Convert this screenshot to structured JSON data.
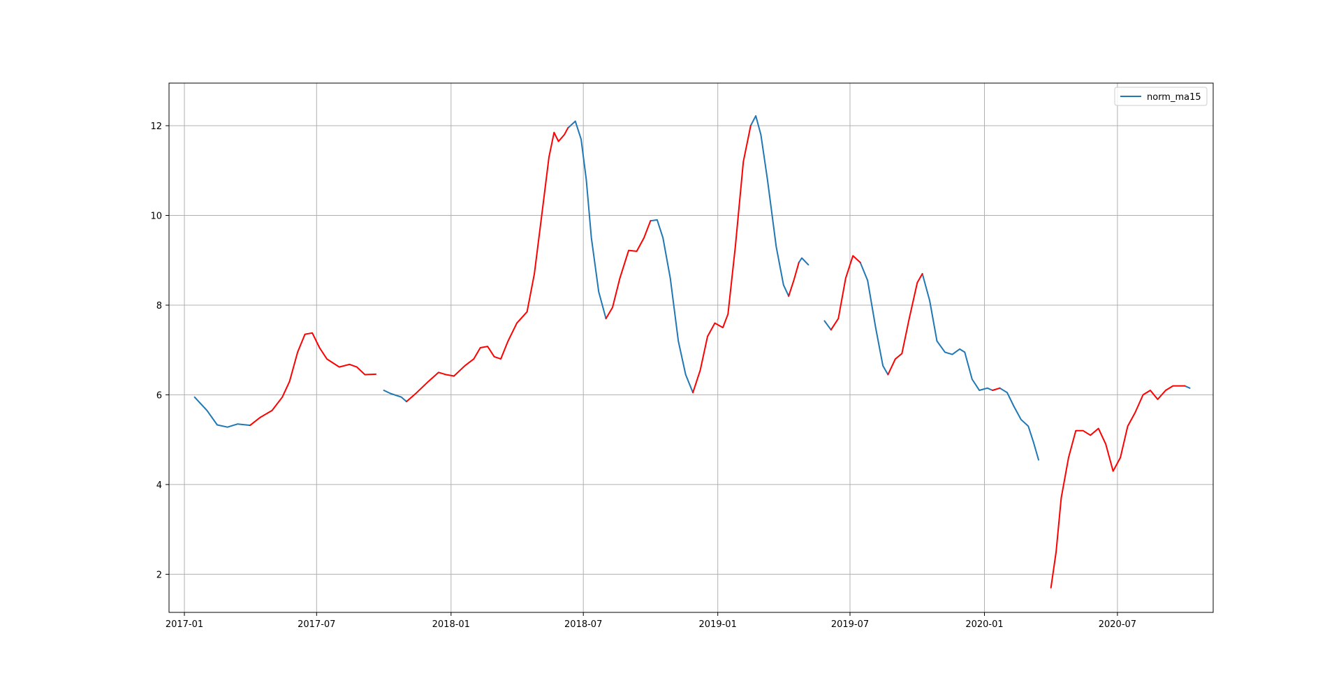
{
  "chart_data": {
    "type": "line",
    "title": "",
    "xlabel": "",
    "ylabel": "",
    "x_ticks": [
      "2017-01",
      "2017-07",
      "2018-01",
      "2018-07",
      "2019-01",
      "2019-07",
      "2020-01",
      "2020-07"
    ],
    "y_ticks": [
      "2",
      "4",
      "6",
      "8",
      "10",
      "12"
    ],
    "xlim": [
      "2016-12-11",
      "2020-11-09"
    ],
    "ylim": [
      1.15,
      12.95
    ],
    "grid": true,
    "legend": {
      "placement": "top-right",
      "entries": [
        "norm_ma15"
      ]
    },
    "colors": {
      "base": "#1f77b4",
      "highlight": "#ff0000"
    },
    "series": [
      {
        "name": "norm_ma15",
        "color": "#1f77b4",
        "segments": [
          [
            [
              "2017-01-15",
              5.95
            ],
            [
              "2017-02-01",
              5.65
            ],
            [
              "2017-02-15",
              5.33
            ],
            [
              "2017-03-01",
              5.28
            ],
            [
              "2017-03-15",
              5.35
            ],
            [
              "2017-04-01",
              5.32
            ]
          ],
          [
            [
              "2017-10-01",
              6.1
            ],
            [
              "2017-10-10",
              6.03
            ],
            [
              "2017-10-25",
              5.95
            ],
            [
              "2017-11-01",
              5.85
            ]
          ],
          [
            [
              "2018-06-10",
              11.95
            ],
            [
              "2018-06-20",
              12.1
            ],
            [
              "2018-06-28",
              11.7
            ],
            [
              "2018-07-05",
              10.8
            ],
            [
              "2018-07-12",
              9.5
            ],
            [
              "2018-07-22",
              8.3
            ],
            [
              "2018-08-01",
              7.7
            ]
          ],
          [
            [
              "2018-10-01",
              9.88
            ],
            [
              "2018-10-10",
              9.9
            ],
            [
              "2018-10-18",
              9.5
            ],
            [
              "2018-10-28",
              8.6
            ],
            [
              "2018-11-08",
              7.2
            ],
            [
              "2018-11-18",
              6.45
            ],
            [
              "2018-11-28",
              6.05
            ]
          ],
          [
            [
              "2019-02-15",
              12.0
            ],
            [
              "2019-02-22",
              12.22
            ],
            [
              "2019-03-01",
              11.8
            ],
            [
              "2019-03-10",
              10.8
            ],
            [
              "2019-03-22",
              9.3
            ],
            [
              "2019-04-01",
              8.45
            ],
            [
              "2019-04-08",
              8.2
            ]
          ],
          [
            [
              "2019-04-22",
              8.95
            ],
            [
              "2019-04-26",
              9.05
            ],
            [
              "2019-05-05",
              8.9
            ]
          ],
          [
            [
              "2019-05-27",
              7.65
            ],
            [
              "2019-06-05",
              7.45
            ]
          ],
          [
            [
              "2019-07-15",
              8.95
            ],
            [
              "2019-07-25",
              8.55
            ],
            [
              "2019-08-05",
              7.5
            ],
            [
              "2019-08-15",
              6.65
            ],
            [
              "2019-08-22",
              6.45
            ]
          ],
          [
            [
              "2019-10-08",
              8.7
            ],
            [
              "2019-10-18",
              8.1
            ],
            [
              "2019-10-28",
              7.2
            ],
            [
              "2019-11-08",
              6.95
            ],
            [
              "2019-11-18",
              6.9
            ],
            [
              "2019-11-28",
              7.02
            ],
            [
              "2019-12-05",
              6.95
            ],
            [
              "2019-12-15",
              6.35
            ],
            [
              "2019-12-25",
              6.1
            ],
            [
              "2020-01-05",
              6.15
            ],
            [
              "2020-01-12",
              6.1
            ]
          ],
          [
            [
              "2020-01-22",
              6.15
            ],
            [
              "2020-02-01",
              6.05
            ],
            [
              "2020-02-10",
              5.75
            ],
            [
              "2020-02-20",
              5.45
            ],
            [
              "2020-03-01",
              5.3
            ],
            [
              "2020-03-08",
              4.95
            ],
            [
              "2020-03-15",
              4.55
            ]
          ],
          [
            [
              "2020-10-01",
              6.2
            ],
            [
              "2020-10-08",
              6.15
            ]
          ]
        ]
      }
    ],
    "highlight_segments": [
      [
        [
          "2017-04-01",
          5.32
        ],
        [
          "2017-04-15",
          5.5
        ],
        [
          "2017-05-01",
          5.65
        ],
        [
          "2017-05-15",
          5.95
        ],
        [
          "2017-05-25",
          6.3
        ],
        [
          "2017-06-05",
          6.95
        ],
        [
          "2017-06-15",
          7.35
        ],
        [
          "2017-06-25",
          7.38
        ],
        [
          "2017-07-05",
          7.05
        ],
        [
          "2017-07-15",
          6.8
        ],
        [
          "2017-08-01",
          6.62
        ],
        [
          "2017-08-15",
          6.68
        ],
        [
          "2017-08-25",
          6.62
        ],
        [
          "2017-09-05",
          6.45
        ],
        [
          "2017-09-20",
          6.46
        ]
      ],
      [
        [
          "2017-11-01",
          5.85
        ],
        [
          "2017-11-15",
          6.05
        ],
        [
          "2017-12-01",
          6.3
        ],
        [
          "2017-12-15",
          6.5
        ],
        [
          "2017-12-25",
          6.45
        ],
        [
          "2018-01-05",
          6.42
        ],
        [
          "2018-01-20",
          6.65
        ],
        [
          "2018-02-01",
          6.8
        ],
        [
          "2018-02-10",
          7.05
        ],
        [
          "2018-02-20",
          7.08
        ],
        [
          "2018-03-01",
          6.85
        ],
        [
          "2018-03-10",
          6.8
        ],
        [
          "2018-03-20",
          7.2
        ],
        [
          "2018-04-01",
          7.6
        ],
        [
          "2018-04-15",
          7.85
        ],
        [
          "2018-04-25",
          8.7
        ],
        [
          "2018-05-05",
          10.0
        ],
        [
          "2018-05-15",
          11.3
        ],
        [
          "2018-05-22",
          11.85
        ],
        [
          "2018-05-28",
          11.65
        ],
        [
          "2018-06-05",
          11.8
        ],
        [
          "2018-06-10",
          11.95
        ]
      ],
      [
        [
          "2018-08-01",
          7.7
        ],
        [
          "2018-08-10",
          7.95
        ],
        [
          "2018-08-20",
          8.6
        ],
        [
          "2018-09-01",
          9.22
        ],
        [
          "2018-09-12",
          9.2
        ],
        [
          "2018-09-22",
          9.5
        ],
        [
          "2018-10-01",
          9.88
        ]
      ],
      [
        [
          "2018-11-28",
          6.05
        ],
        [
          "2018-12-08",
          6.55
        ],
        [
          "2018-12-18",
          7.3
        ],
        [
          "2018-12-28",
          7.6
        ],
        [
          "2019-01-08",
          7.5
        ],
        [
          "2019-01-15",
          7.8
        ],
        [
          "2019-01-25",
          9.3
        ],
        [
          "2019-02-05",
          11.2
        ],
        [
          "2019-02-15",
          12.0
        ]
      ],
      [
        [
          "2019-04-08",
          8.2
        ],
        [
          "2019-04-15",
          8.55
        ],
        [
          "2019-04-22",
          8.95
        ]
      ],
      [
        [
          "2019-06-05",
          7.45
        ],
        [
          "2019-06-15",
          7.7
        ],
        [
          "2019-06-25",
          8.6
        ],
        [
          "2019-07-05",
          9.1
        ],
        [
          "2019-07-15",
          8.95
        ]
      ],
      [
        [
          "2019-08-22",
          6.45
        ],
        [
          "2019-09-01",
          6.8
        ],
        [
          "2019-09-10",
          6.92
        ],
        [
          "2019-09-20",
          7.7
        ],
        [
          "2019-10-01",
          8.5
        ],
        [
          "2019-10-08",
          8.7
        ]
      ],
      [
        [
          "2020-01-12",
          6.1
        ],
        [
          "2020-01-22",
          6.15
        ]
      ],
      [
        [
          "2020-04-01",
          1.7
        ],
        [
          "2020-04-08",
          2.5
        ],
        [
          "2020-04-15",
          3.7
        ],
        [
          "2020-04-25",
          4.6
        ],
        [
          "2020-05-05",
          5.2
        ],
        [
          "2020-05-15",
          5.2
        ],
        [
          "2020-05-25",
          5.1
        ],
        [
          "2020-06-05",
          5.25
        ],
        [
          "2020-06-15",
          4.9
        ],
        [
          "2020-06-25",
          4.3
        ],
        [
          "2020-07-05",
          4.6
        ],
        [
          "2020-07-15",
          5.3
        ],
        [
          "2020-07-25",
          5.6
        ],
        [
          "2020-08-05",
          6.0
        ],
        [
          "2020-08-15",
          6.1
        ],
        [
          "2020-08-25",
          5.9
        ],
        [
          "2020-09-05",
          6.1
        ],
        [
          "2020-09-15",
          6.2
        ],
        [
          "2020-10-01",
          6.2
        ]
      ]
    ]
  }
}
